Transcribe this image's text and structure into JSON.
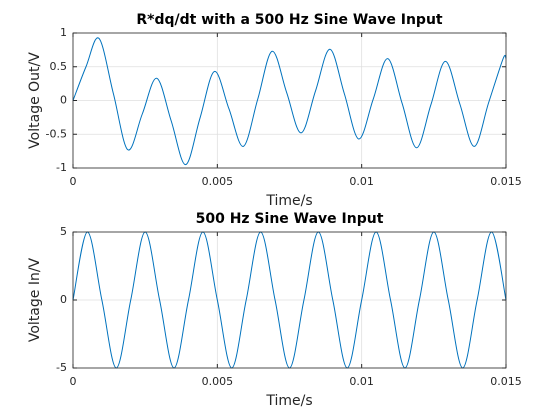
{
  "chart_data": [
    {
      "type": "line",
      "title": "R*dq/dt with a 500 Hz Sine Wave Input",
      "xlabel": "Time/s",
      "ylabel": "Voltage Out/V",
      "x": [
        0,
        0.00045,
        0.0009,
        0.0014,
        0.0019,
        0.0024,
        0.0029,
        0.0034,
        0.0039,
        0.0044,
        0.0049,
        0.0054,
        0.0059,
        0.0064,
        0.0069,
        0.0074,
        0.0079,
        0.0084,
        0.0089,
        0.0094,
        0.0099,
        0.0104,
        0.0109,
        0.0114,
        0.0119,
        0.0124,
        0.0129,
        0.0134,
        0.0139,
        0.0144,
        0.0149,
        0.015
      ],
      "series": [
        {
          "color": "#0072bd",
          "values": [
            0,
            0.5,
            0.92,
            0.1,
            -0.73,
            -0.2,
            0.33,
            -0.3,
            -0.95,
            -0.26,
            0.43,
            -0.12,
            -0.68,
            0.02,
            0.73,
            0.12,
            -0.48,
            0.14,
            0.76,
            0.1,
            -0.57,
            0.02,
            0.62,
            -0.04,
            -0.7,
            -0.06,
            0.58,
            -0.05,
            -0.68,
            -0.03,
            0.62,
            0.62
          ]
        }
      ],
      "xlim": [
        0,
        0.015
      ],
      "xticks": [
        0,
        0.005,
        0.01,
        0.015
      ],
      "ylim": [
        -1,
        1
      ],
      "yticks": [
        -1,
        -0.5,
        0,
        0.5,
        1
      ],
      "grid": true
    },
    {
      "type": "line",
      "title": "500 Hz Sine Wave Input",
      "xlabel": "Time/s",
      "ylabel": "Voltage In/V",
      "x": [
        0,
        0.0005,
        0.001,
        0.0015,
        0.002,
        0.0025,
        0.003,
        0.0035,
        0.004,
        0.0045,
        0.005,
        0.0055,
        0.006,
        0.0065,
        0.007,
        0.0075,
        0.008,
        0.0085,
        0.009,
        0.0095,
        0.01,
        0.0105,
        0.011,
        0.0115,
        0.012,
        0.0125,
        0.013,
        0.0135,
        0.014,
        0.0145,
        0.015
      ],
      "series": [
        {
          "color": "#0072bd",
          "values": [
            0,
            5,
            0,
            -5,
            0,
            5,
            0,
            -5,
            0,
            5,
            0,
            -5,
            0,
            5,
            0,
            -5,
            0,
            5,
            0,
            -5,
            0,
            5,
            0,
            -5,
            0,
            5,
            0,
            -5,
            0,
            5,
            0
          ]
        }
      ],
      "xlim": [
        0,
        0.015
      ],
      "xticks": [
        0,
        0.005,
        0.01,
        0.015
      ],
      "ylim": [
        -5,
        5
      ],
      "yticks": [
        -5,
        0,
        5
      ],
      "grid": true
    }
  ]
}
